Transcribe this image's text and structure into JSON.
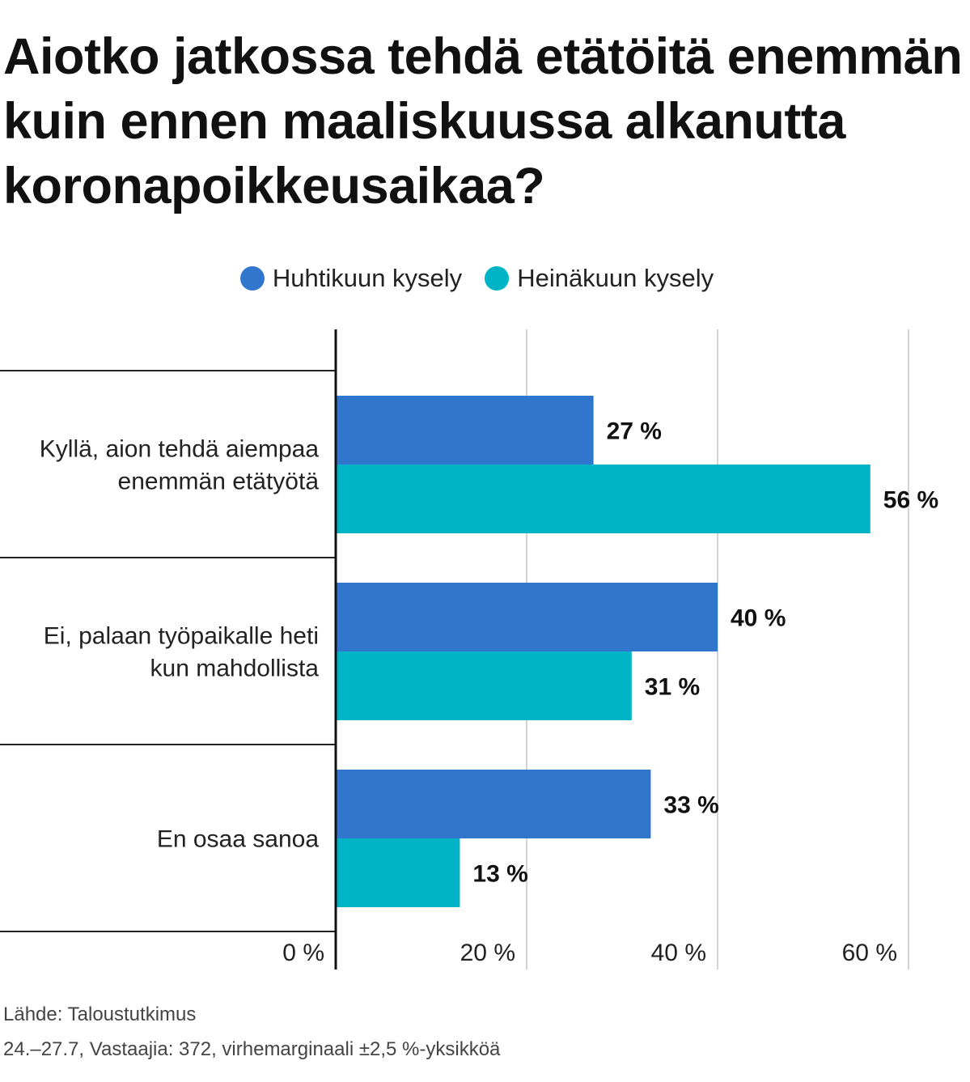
{
  "title": "Aiotko jatkossa tehdä etätöitä enemmän kuin ennen maaliskuussa alkanutta koronapoikkeusaikaa?",
  "source": "Lähde: Taloustutkimus",
  "note": "24.–27.7, Vastaajia: 372, virhemarginaali ±2,5 %-yksikköä",
  "colors": {
    "series1": "#2f76cc",
    "series2": "#00b4c8"
  },
  "chart_data": {
    "type": "bar",
    "orientation": "horizontal",
    "categories": [
      [
        "Kyllä, aion tehdä aiempaa",
        "enemmän etätyötä"
      ],
      [
        "Ei, palaan työpaikalle heti",
        "kun mahdollista"
      ],
      [
        "En osaa sanoa"
      ]
    ],
    "series": [
      {
        "name": "Huhtikuun kysely",
        "values": [
          27,
          40,
          33
        ],
        "labels": [
          "27 %",
          "40 %",
          "33 %"
        ]
      },
      {
        "name": "Heinäkuun kysely",
        "values": [
          56,
          31,
          13
        ],
        "labels": [
          "56 %",
          "31 %",
          "13 %"
        ]
      }
    ],
    "xlim": [
      0,
      60
    ],
    "xticks": [
      0,
      20,
      40,
      60
    ],
    "xtick_labels": [
      "0 %",
      "20 %",
      "40 %",
      "60 %"
    ],
    "grid": true,
    "legend_position": "top"
  }
}
